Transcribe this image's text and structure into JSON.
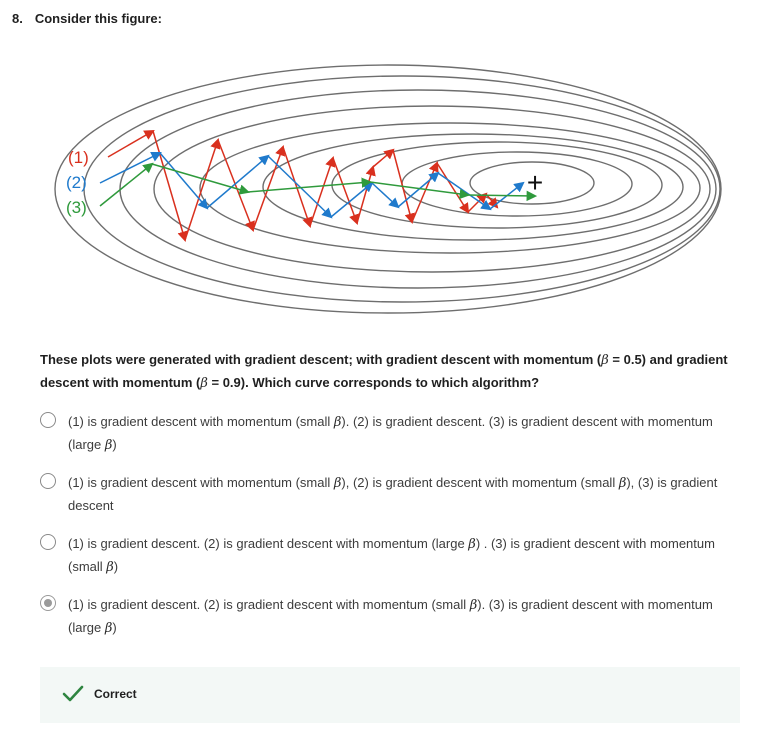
{
  "question": {
    "number": "8.",
    "title": "Consider this figure:",
    "prompt_part1": "These plots were generated with gradient descent; with gradient descent with momentum (",
    "prompt_part2": " = 0.5) and gradient descent with momentum (",
    "prompt_part3": " = 0.9). Which curve corresponds to which algorithm?",
    "beta": "β"
  },
  "figure": {
    "labels": [
      "(1)",
      "(2)",
      "(3)"
    ],
    "minimum_marker": "+",
    "colors": {
      "curve1": "#d9301e",
      "curve2": "#1f7acc",
      "curve3": "#2f9a3c",
      "contour": "#6e6e6e"
    }
  },
  "options": [
    {
      "part1": "(1) is gradient descent with momentum (small ",
      "part2": "). (2) is gradient descent. (3) is gradient descent with momentum (large ",
      "part3": ")",
      "selected": false
    },
    {
      "part1": "(1) is gradient descent with momentum (small ",
      "part2": "), (2) is gradient descent with momentum (small ",
      "part3": "), (3) is gradient descent",
      "selected": false
    },
    {
      "part1": "(1) is gradient descent. (2) is gradient descent with momentum (large ",
      "part2": ") . (3) is gradient descent with momentum (small ",
      "part3": ")",
      "selected": false
    },
    {
      "part1": "(1) is gradient descent. (2) is gradient descent with momentum (small ",
      "part2": "). (3) is gradient descent with momentum (large ",
      "part3": ")",
      "selected": true
    }
  ],
  "feedback": {
    "label": "Correct",
    "color": "#2e8540"
  }
}
